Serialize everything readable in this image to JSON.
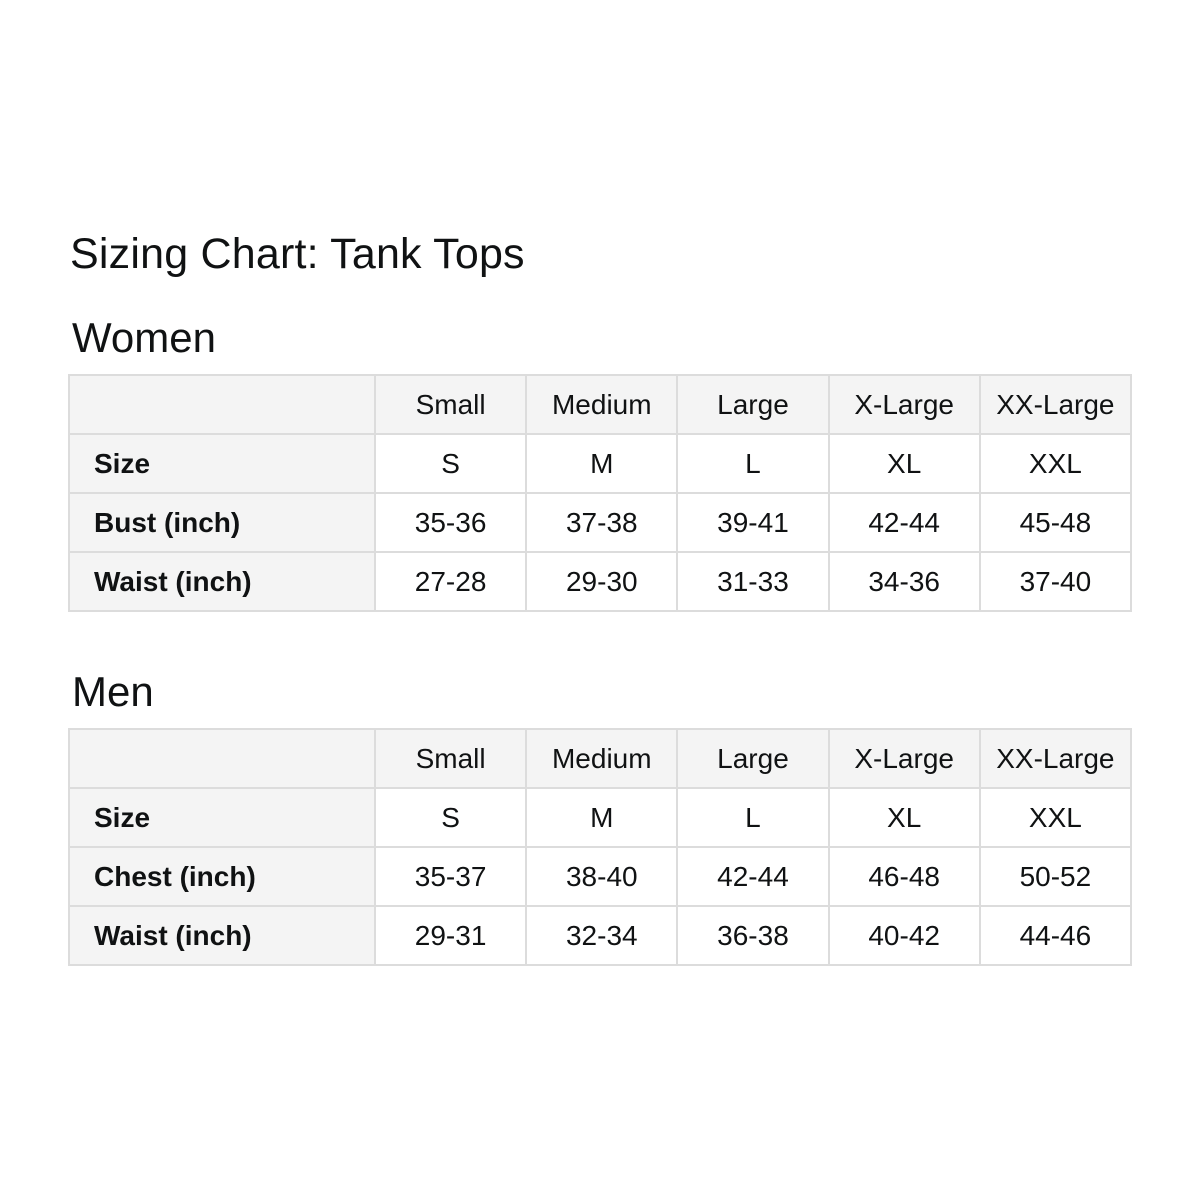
{
  "page": {
    "title": "Sizing Chart: Tank Tops"
  },
  "colors": {
    "text": "#101213",
    "header_bg": "#f4f4f4",
    "border": "#dcdcdc",
    "background": "#ffffff"
  },
  "tables": [
    {
      "section": "Women",
      "columns": [
        "Small",
        "Medium",
        "Large",
        "X-Large",
        "XX-Large"
      ],
      "rows": [
        {
          "label": "Size",
          "values": [
            "S",
            "M",
            "L",
            "XL",
            "XXL"
          ]
        },
        {
          "label": "Bust (inch)",
          "values": [
            "35-36",
            "37-38",
            "39-41",
            "42-44",
            "45-48"
          ]
        },
        {
          "label": "Waist (inch)",
          "values": [
            "27-28",
            "29-30",
            "31-33",
            "34-36",
            "37-40"
          ]
        }
      ]
    },
    {
      "section": "Men",
      "columns": [
        "Small",
        "Medium",
        "Large",
        "X-Large",
        "XX-Large"
      ],
      "rows": [
        {
          "label": "Size",
          "values": [
            "S",
            "M",
            "L",
            "XL",
            "XXL"
          ]
        },
        {
          "label": "Chest (inch)",
          "values": [
            "35-37",
            "38-40",
            "42-44",
            "46-48",
            "50-52"
          ]
        },
        {
          "label": "Waist (inch)",
          "values": [
            "29-31",
            "32-34",
            "36-38",
            "40-42",
            "44-46"
          ]
        }
      ]
    }
  ]
}
